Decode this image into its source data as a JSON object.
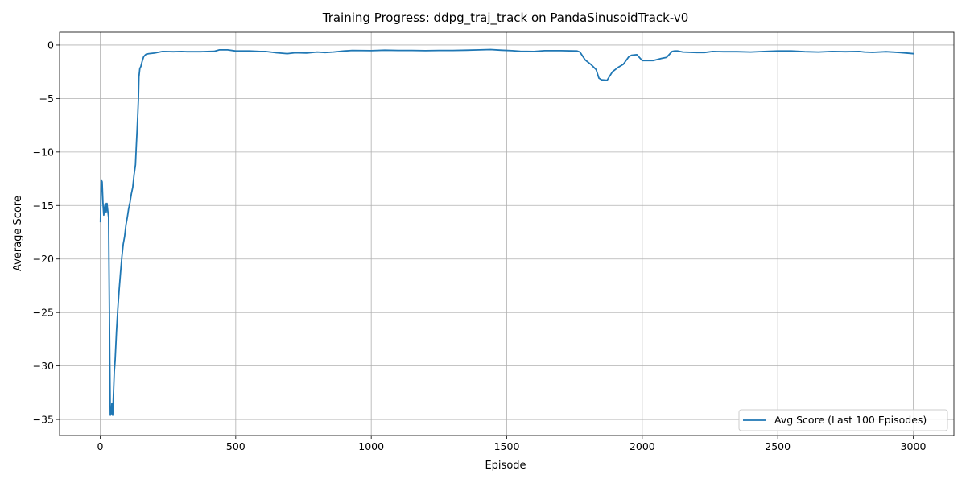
{
  "chart_data": {
    "type": "line",
    "title": "Training Progress: ddpg_traj_track on PandaSinusoidTrack-v0",
    "xlabel": "Episode",
    "ylabel": "Average Score",
    "xlim": [
      -150,
      3150
    ],
    "ylim": [
      -36.5,
      1.2
    ],
    "xticks": [
      0,
      500,
      1000,
      1500,
      2000,
      2500,
      3000
    ],
    "yticks": [
      0,
      -5,
      -10,
      -15,
      -20,
      -25,
      -30,
      -35
    ],
    "xtick_labels": [
      "0",
      "500",
      "1000",
      "1500",
      "2000",
      "2500",
      "3000"
    ],
    "ytick_labels": [
      "0",
      "−5",
      "−10",
      "−15",
      "−20",
      "−25",
      "−30",
      "−35"
    ],
    "grid": true,
    "legend_position": "lower-right",
    "series": [
      {
        "name": "Avg Score (Last 100 Episodes)",
        "color": "#1f77b4",
        "x": [
          1,
          4,
          7,
          10,
          13,
          16,
          19,
          22,
          25,
          28,
          31,
          34,
          37,
          40,
          43,
          46,
          49,
          52,
          55,
          60,
          65,
          70,
          75,
          80,
          85,
          90,
          95,
          100,
          105,
          110,
          115,
          120,
          125,
          130,
          133,
          136,
          139,
          141,
          143,
          146,
          150,
          155,
          160,
          165,
          170,
          180,
          200,
          230,
          270,
          300,
          320,
          340,
          370,
          420,
          440,
          470,
          500,
          550,
          590,
          610,
          650,
          690,
          720,
          760,
          800,
          830,
          860,
          900,
          930,
          1000,
          1050,
          1100,
          1150,
          1200,
          1250,
          1300,
          1350,
          1400,
          1440,
          1480,
          1520,
          1550,
          1600,
          1640,
          1700,
          1760,
          1770,
          1790,
          1810,
          1830,
          1840,
          1850,
          1870,
          1890,
          1910,
          1930,
          1950,
          1960,
          1980,
          2000,
          2040,
          2070,
          2090,
          2110,
          2120,
          2130,
          2150,
          2200,
          2230,
          2260,
          2300,
          2350,
          2400,
          2450,
          2500,
          2550,
          2600,
          2650,
          2700,
          2750,
          2800,
          2820,
          2850,
          2900,
          2950,
          3000
        ],
        "y": [
          -16.5,
          -12.6,
          -12.8,
          -14.8,
          -15.9,
          -15.2,
          -14.8,
          -15.6,
          -14.8,
          -15.5,
          -16.1,
          -25.0,
          -34.6,
          -34.5,
          -33.5,
          -34.6,
          -32.5,
          -30.5,
          -29.5,
          -26.8,
          -24.6,
          -22.8,
          -21.2,
          -19.8,
          -18.6,
          -17.9,
          -16.8,
          -16.1,
          -15.3,
          -14.7,
          -13.9,
          -13.3,
          -12.1,
          -11.2,
          -9.5,
          -8.0,
          -6.3,
          -5.0,
          -3.0,
          -2.2,
          -2.0,
          -1.5,
          -1.1,
          -0.95,
          -0.85,
          -0.8,
          -0.75,
          -0.6,
          -0.62,
          -0.6,
          -0.62,
          -0.62,
          -0.62,
          -0.58,
          -0.45,
          -0.45,
          -0.55,
          -0.55,
          -0.6,
          -0.6,
          -0.72,
          -0.8,
          -0.72,
          -0.75,
          -0.65,
          -0.7,
          -0.65,
          -0.55,
          -0.5,
          -0.52,
          -0.48,
          -0.5,
          -0.5,
          -0.52,
          -0.5,
          -0.5,
          -0.48,
          -0.45,
          -0.42,
          -0.48,
          -0.52,
          -0.58,
          -0.6,
          -0.52,
          -0.52,
          -0.55,
          -0.65,
          -1.4,
          -1.8,
          -2.3,
          -3.1,
          -3.25,
          -3.3,
          -2.5,
          -2.1,
          -1.8,
          -1.1,
          -0.95,
          -0.9,
          -1.45,
          -1.45,
          -1.25,
          -1.15,
          -0.6,
          -0.55,
          -0.55,
          -0.65,
          -0.7,
          -0.7,
          -0.6,
          -0.62,
          -0.62,
          -0.65,
          -0.6,
          -0.55,
          -0.55,
          -0.62,
          -0.65,
          -0.6,
          -0.62,
          -0.6,
          -0.65,
          -0.68,
          -0.62,
          -0.7,
          -0.8
        ]
      }
    ]
  }
}
